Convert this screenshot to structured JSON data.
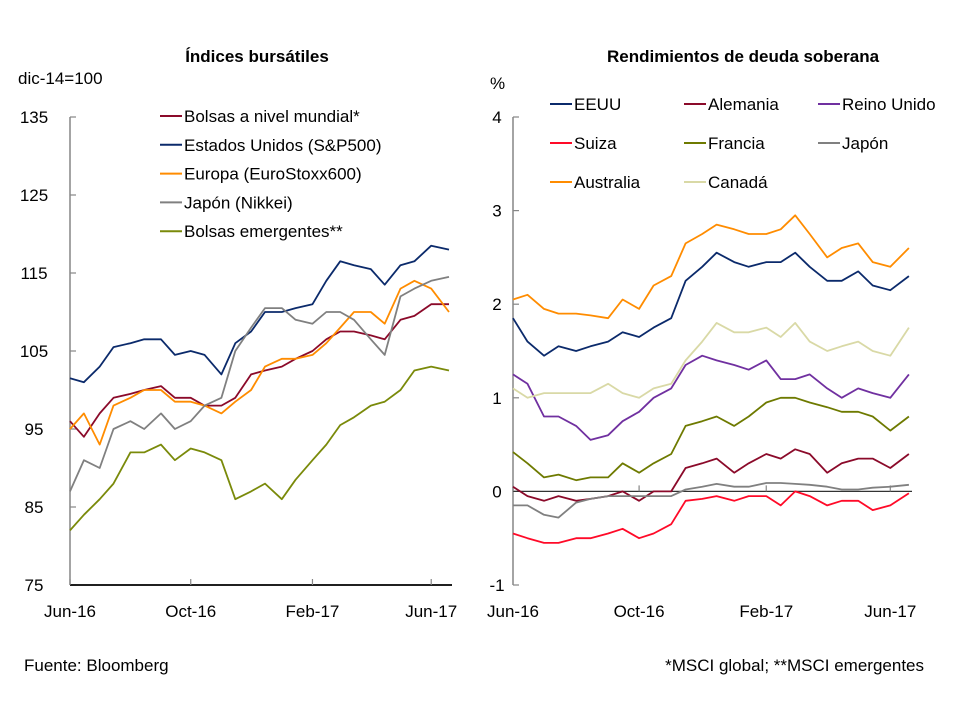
{
  "footer": {
    "source": "Fuente: Bloomberg",
    "note": "*MSCI global; **MSCI emergentes"
  },
  "chart_data": [
    {
      "type": "line",
      "title": "Índices bursátiles",
      "ylabel": "dic-14=100",
      "ylim": [
        75,
        135
      ],
      "yticks": [
        75,
        85,
        95,
        105,
        115,
        125,
        135
      ],
      "xlim": [
        "2016-06-01",
        "2017-06-22"
      ],
      "xticks": [
        {
          "date": "2016-06-01",
          "label": "Jun-16"
        },
        {
          "date": "2016-10-01",
          "label": "Oct-16"
        },
        {
          "date": "2017-02-01",
          "label": "Feb-17"
        },
        {
          "date": "2017-06-01",
          "label": "Jun-17"
        }
      ],
      "grid": false,
      "legend": "top-center",
      "x": [
        "2016-06-01",
        "2016-06-15",
        "2016-07-01",
        "2016-07-15",
        "2016-08-01",
        "2016-08-15",
        "2016-09-01",
        "2016-09-15",
        "2016-10-01",
        "2016-10-15",
        "2016-11-01",
        "2016-11-15",
        "2016-12-01",
        "2016-12-15",
        "2017-01-01",
        "2017-01-15",
        "2017-02-01",
        "2017-02-15",
        "2017-03-01",
        "2017-03-15",
        "2017-04-01",
        "2017-04-15",
        "2017-05-01",
        "2017-05-15",
        "2017-06-01",
        "2017-06-19"
      ],
      "series": [
        {
          "name": "Bolsas a nivel mundial*",
          "color": "#8B0A2A",
          "values": [
            96,
            94,
            97,
            99,
            99.5,
            100,
            100.5,
            99,
            99,
            98,
            98,
            99,
            102,
            102.5,
            103,
            104,
            105,
            106.5,
            107.5,
            107.5,
            107,
            106.5,
            109,
            109.5,
            111,
            111
          ]
        },
        {
          "name": "Estados Unidos (S&P500)",
          "color": "#0B2A6B",
          "values": [
            101.5,
            101,
            103,
            105.5,
            106,
            106.5,
            106.5,
            104.5,
            105,
            104.5,
            102,
            106,
            107.5,
            110,
            110,
            110.5,
            111,
            114,
            116.5,
            116,
            115.5,
            113.5,
            116,
            116.5,
            118.5,
            118
          ]
        },
        {
          "name": "Europa (EuroStoxx600)",
          "color": "#FF8C00",
          "values": [
            95,
            97,
            93,
            98,
            99,
            100,
            100,
            98.5,
            98.5,
            98,
            97,
            98.5,
            100,
            103,
            104,
            104,
            104.5,
            106,
            108,
            110,
            110,
            108.5,
            113,
            114,
            113,
            110
          ]
        },
        {
          "name": "Japón (Nikkei)",
          "color": "#808080",
          "values": [
            87,
            91,
            90,
            95,
            96,
            95,
            97,
            95,
            96,
            98,
            99,
            105,
            108,
            110.5,
            110.5,
            109,
            108.5,
            110,
            110,
            109,
            106.5,
            104.5,
            112,
            113,
            114,
            114.5
          ]
        },
        {
          "name": "Bolsas emergentes**",
          "color": "#7A8A0A",
          "values": [
            82,
            84,
            86,
            88,
            92,
            92,
            93,
            91,
            92.5,
            92,
            91,
            86,
            87,
            88,
            86,
            88.5,
            91,
            93,
            95.5,
            96.5,
            98,
            98.5,
            100,
            102.5,
            103,
            102.5
          ]
        }
      ]
    },
    {
      "type": "line",
      "title": "Rendimientos de deuda soberana",
      "ylabel": "%",
      "ylim": [
        -1,
        4
      ],
      "yticks": [
        -1,
        0,
        1,
        2,
        3,
        4
      ],
      "xlim": [
        "2016-06-01",
        "2017-06-22"
      ],
      "xticks": [
        {
          "date": "2016-06-01",
          "label": "Jun-16"
        },
        {
          "date": "2016-10-01",
          "label": "Oct-16"
        },
        {
          "date": "2017-02-01",
          "label": "Feb-17"
        },
        {
          "date": "2017-06-01",
          "label": "Jun-17"
        }
      ],
      "grid": false,
      "legend": "top",
      "x": [
        "2016-06-01",
        "2016-06-15",
        "2016-07-01",
        "2016-07-15",
        "2016-08-01",
        "2016-08-15",
        "2016-09-01",
        "2016-09-15",
        "2016-10-01",
        "2016-10-15",
        "2016-11-01",
        "2016-11-15",
        "2016-12-01",
        "2016-12-15",
        "2017-01-01",
        "2017-01-15",
        "2017-02-01",
        "2017-02-15",
        "2017-03-01",
        "2017-03-15",
        "2017-04-01",
        "2017-04-15",
        "2017-05-01",
        "2017-05-15",
        "2017-06-01",
        "2017-06-19"
      ],
      "series": [
        {
          "name": "EEUU",
          "color": "#0B2A6B",
          "values": [
            1.85,
            1.6,
            1.45,
            1.55,
            1.5,
            1.55,
            1.6,
            1.7,
            1.65,
            1.75,
            1.85,
            2.25,
            2.4,
            2.55,
            2.45,
            2.4,
            2.45,
            2.45,
            2.55,
            2.4,
            2.25,
            2.25,
            2.35,
            2.2,
            2.15,
            2.3
          ]
        },
        {
          "name": "Alemania",
          "color": "#8B0A2A",
          "values": [
            0.05,
            -0.05,
            -0.1,
            -0.05,
            -0.1,
            -0.08,
            -0.05,
            0.0,
            -0.1,
            0.0,
            0.0,
            0.25,
            0.3,
            0.35,
            0.2,
            0.3,
            0.4,
            0.35,
            0.45,
            0.4,
            0.2,
            0.3,
            0.35,
            0.35,
            0.25,
            0.4
          ]
        },
        {
          "name": "Reino Unido",
          "color": "#7030A0",
          "values": [
            1.25,
            1.15,
            0.8,
            0.8,
            0.7,
            0.55,
            0.6,
            0.75,
            0.85,
            1.0,
            1.1,
            1.35,
            1.45,
            1.4,
            1.35,
            1.3,
            1.4,
            1.2,
            1.2,
            1.25,
            1.1,
            1.0,
            1.1,
            1.05,
            1.0,
            1.25
          ]
        },
        {
          "name": "Suiza",
          "color": "#FF0A28",
          "values": [
            -0.45,
            -0.5,
            -0.55,
            -0.55,
            -0.5,
            -0.5,
            -0.45,
            -0.4,
            -0.5,
            -0.45,
            -0.35,
            -0.1,
            -0.08,
            -0.05,
            -0.1,
            -0.05,
            -0.05,
            -0.15,
            0.0,
            -0.05,
            -0.15,
            -0.1,
            -0.1,
            -0.2,
            -0.15,
            -0.02
          ]
        },
        {
          "name": "Francia",
          "color": "#6E7A00",
          "values": [
            0.42,
            0.3,
            0.15,
            0.18,
            0.12,
            0.15,
            0.15,
            0.3,
            0.2,
            0.3,
            0.4,
            0.7,
            0.75,
            0.8,
            0.7,
            0.8,
            0.95,
            1.0,
            1.0,
            0.95,
            0.9,
            0.85,
            0.85,
            0.8,
            0.65,
            0.8
          ]
        },
        {
          "name": "Japón",
          "color": "#808080",
          "values": [
            -0.15,
            -0.15,
            -0.25,
            -0.28,
            -0.12,
            -0.08,
            -0.05,
            -0.05,
            -0.05,
            -0.05,
            -0.05,
            0.02,
            0.05,
            0.08,
            0.05,
            0.05,
            0.09,
            0.09,
            0.08,
            0.07,
            0.05,
            0.02,
            0.02,
            0.04,
            0.05,
            0.07
          ]
        },
        {
          "name": "Australia",
          "color": "#FF8C00",
          "values": [
            2.05,
            2.1,
            1.95,
            1.9,
            1.9,
            1.88,
            1.85,
            2.05,
            1.95,
            2.2,
            2.3,
            2.65,
            2.75,
            2.85,
            2.8,
            2.75,
            2.75,
            2.8,
            2.95,
            2.75,
            2.5,
            2.6,
            2.65,
            2.45,
            2.4,
            2.6
          ]
        },
        {
          "name": "Canadá",
          "color": "#D9D9A6",
          "values": [
            1.1,
            1.0,
            1.05,
            1.05,
            1.05,
            1.05,
            1.15,
            1.05,
            1.0,
            1.1,
            1.15,
            1.4,
            1.6,
            1.8,
            1.7,
            1.7,
            1.75,
            1.65,
            1.8,
            1.6,
            1.5,
            1.55,
            1.6,
            1.5,
            1.45,
            1.75
          ]
        }
      ]
    }
  ]
}
